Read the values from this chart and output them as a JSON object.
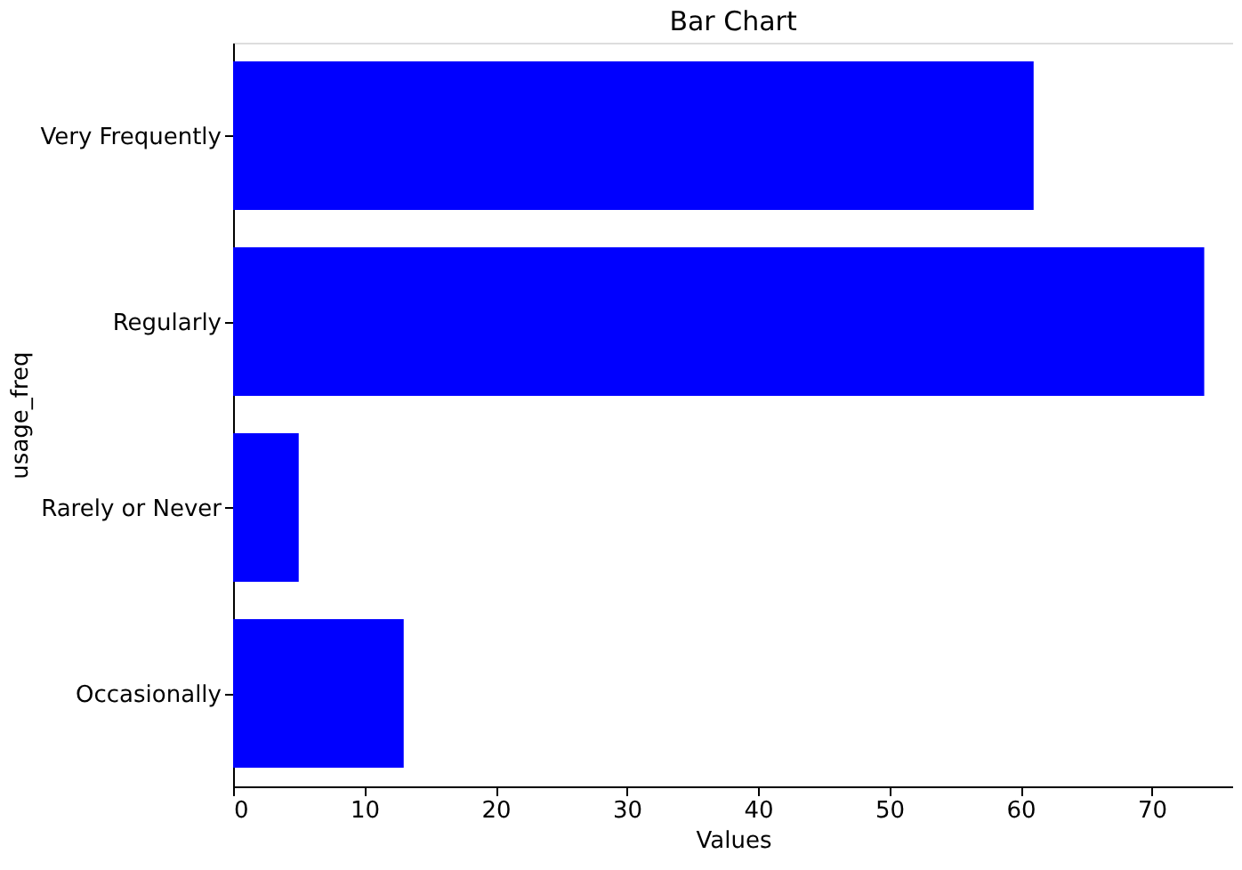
{
  "chart_data": {
    "type": "bar",
    "orientation": "horizontal",
    "title": "Bar Chart",
    "xlabel": "Values",
    "ylabel": "usage_freq",
    "categories": [
      "Very Frequently",
      "Regularly",
      "Rarely or Never",
      "Occasionally"
    ],
    "values": [
      61,
      74,
      5,
      13
    ],
    "color": "#0000ff",
    "xlim": [
      0,
      76.2
    ],
    "xticks": [
      0,
      10,
      20,
      30,
      40,
      50,
      60,
      70
    ],
    "grid": false
  }
}
